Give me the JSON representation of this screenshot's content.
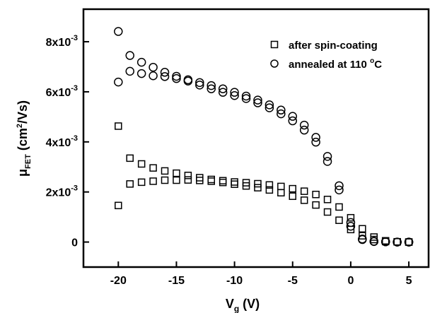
{
  "chart_data": {
    "type": "scatter",
    "xlabel": "V",
    "xlabel_sub": "g",
    "xlabel_unit": " (V)",
    "ylabel": "μ",
    "ylabel_sub": "FET",
    "ylabel_unit_pre": " (cm",
    "ylabel_unit_sup": "2",
    "ylabel_unit_post": "/Vs)",
    "xlim": [
      -23,
      6.7
    ],
    "ylim": [
      -0.001,
      0.0093
    ],
    "x_ticks": [
      {
        "value": -20,
        "label": "-20"
      },
      {
        "value": -15,
        "label": "-15"
      },
      {
        "value": -10,
        "label": "-10"
      },
      {
        "value": -5,
        "label": "-5"
      },
      {
        "value": 0,
        "label": "0"
      },
      {
        "value": 5,
        "label": "5"
      }
    ],
    "y_ticks": [
      {
        "value": 0,
        "label": "0",
        "mantissa": "0",
        "exp": ""
      },
      {
        "value": 0.002,
        "label": "2x10-3",
        "mantissa": "2x10",
        "exp": "-3"
      },
      {
        "value": 0.004,
        "label": "4x10-3",
        "mantissa": "4x10",
        "exp": "-3"
      },
      {
        "value": 0.006,
        "label": "6x10-3",
        "mantissa": "6x10",
        "exp": "-3"
      },
      {
        "value": 0.008,
        "label": "8x10-3",
        "mantissa": "8x10",
        "exp": "-3"
      }
    ],
    "grid": false,
    "legend_position": "top-right",
    "series": [
      {
        "name": "after spin-coating",
        "marker": "square",
        "points": [
          [
            -20,
            0.00463
          ],
          [
            -19,
            0.00335
          ],
          [
            -18,
            0.00312
          ],
          [
            -17,
            0.00296
          ],
          [
            -16,
            0.00284
          ],
          [
            -15,
            0.00275
          ],
          [
            -14,
            0.00266
          ],
          [
            -13,
            0.00257
          ],
          [
            -12,
            0.0025
          ],
          [
            -11,
            0.00245
          ],
          [
            -10,
            0.0024
          ],
          [
            -9,
            0.00237
          ],
          [
            -8,
            0.00233
          ],
          [
            -7,
            0.00228
          ],
          [
            -6,
            0.00222
          ],
          [
            -5,
            0.00213
          ],
          [
            -4,
            0.00203
          ],
          [
            -3,
            0.0019
          ],
          [
            -2,
            0.0017
          ],
          [
            -1,
            0.0014
          ],
          [
            0,
            0.00097
          ],
          [
            1,
            0.00053
          ],
          [
            2,
            0.0002
          ],
          [
            3,
            5e-05
          ],
          [
            4,
            1e-05
          ],
          [
            5,
            0.0
          ],
          [
            5,
            0.0
          ],
          [
            4,
            1e-05
          ],
          [
            3,
            2e-05
          ],
          [
            2,
            0.0001
          ],
          [
            1,
            0.00025
          ],
          [
            0,
            0.0005
          ],
          [
            -1,
            0.00087
          ],
          [
            -2,
            0.0012
          ],
          [
            -3,
            0.00148
          ],
          [
            -4,
            0.00167
          ],
          [
            -5,
            0.00183
          ],
          [
            -6,
            0.00197
          ],
          [
            -7,
            0.00208
          ],
          [
            -8,
            0.00217
          ],
          [
            -9,
            0.00224
          ],
          [
            -10,
            0.00231
          ],
          [
            -11,
            0.00238
          ],
          [
            -12,
            0.00243
          ],
          [
            -13,
            0.00246
          ],
          [
            -14,
            0.00248
          ],
          [
            -15,
            0.00247
          ],
          [
            -16,
            0.00247
          ],
          [
            -17,
            0.00243
          ],
          [
            -18,
            0.00239
          ],
          [
            -19,
            0.00232
          ],
          [
            -20,
            0.00146
          ]
        ]
      },
      {
        "name": "annealed at 110 °C",
        "name_main": "annealed at 110 ",
        "name_sup": "o",
        "name_post": "C",
        "marker": "circle",
        "points": [
          [
            -20,
            0.00841
          ],
          [
            -19,
            0.00745
          ],
          [
            -18,
            0.00718
          ],
          [
            -17,
            0.00698
          ],
          [
            -16,
            0.00678
          ],
          [
            -15,
            0.00662
          ],
          [
            -14,
            0.00648
          ],
          [
            -13,
            0.00637
          ],
          [
            -12,
            0.00625
          ],
          [
            -11,
            0.00612
          ],
          [
            -10,
            0.00598
          ],
          [
            -9,
            0.00583
          ],
          [
            -8,
            0.00567
          ],
          [
            -7,
            0.00548
          ],
          [
            -6,
            0.00527
          ],
          [
            -5,
            0.00502
          ],
          [
            -4,
            0.00467
          ],
          [
            -3,
            0.00418
          ],
          [
            -2,
            0.00342
          ],
          [
            -1,
            0.00225
          ],
          [
            0,
            0.00078
          ],
          [
            1,
            0.00012
          ],
          [
            2,
            2e-05
          ],
          [
            3,
            1e-05
          ],
          [
            4,
            0.0
          ],
          [
            5,
            0.0
          ],
          [
            5,
            0.0
          ],
          [
            4,
            0.0
          ],
          [
            3,
            1e-05
          ],
          [
            2,
            3e-05
          ],
          [
            1,
            0.0001
          ],
          [
            0,
            0.00063
          ],
          [
            -1,
            0.00208
          ],
          [
            -2,
            0.00322
          ],
          [
            -3,
            0.00399
          ],
          [
            -4,
            0.00447
          ],
          [
            -5,
            0.00484
          ],
          [
            -6,
            0.00512
          ],
          [
            -7,
            0.00536
          ],
          [
            -8,
            0.00556
          ],
          [
            -9,
            0.00573
          ],
          [
            -10,
            0.00585
          ],
          [
            -11,
            0.00598
          ],
          [
            -12,
            0.00612
          ],
          [
            -13,
            0.00627
          ],
          [
            -14,
            0.00643
          ],
          [
            -15,
            0.00653
          ],
          [
            -16,
            0.00661
          ],
          [
            -17,
            0.00664
          ],
          [
            -18,
            0.00673
          ],
          [
            -19,
            0.00682
          ],
          [
            -20,
            0.00639
          ]
        ]
      }
    ]
  }
}
